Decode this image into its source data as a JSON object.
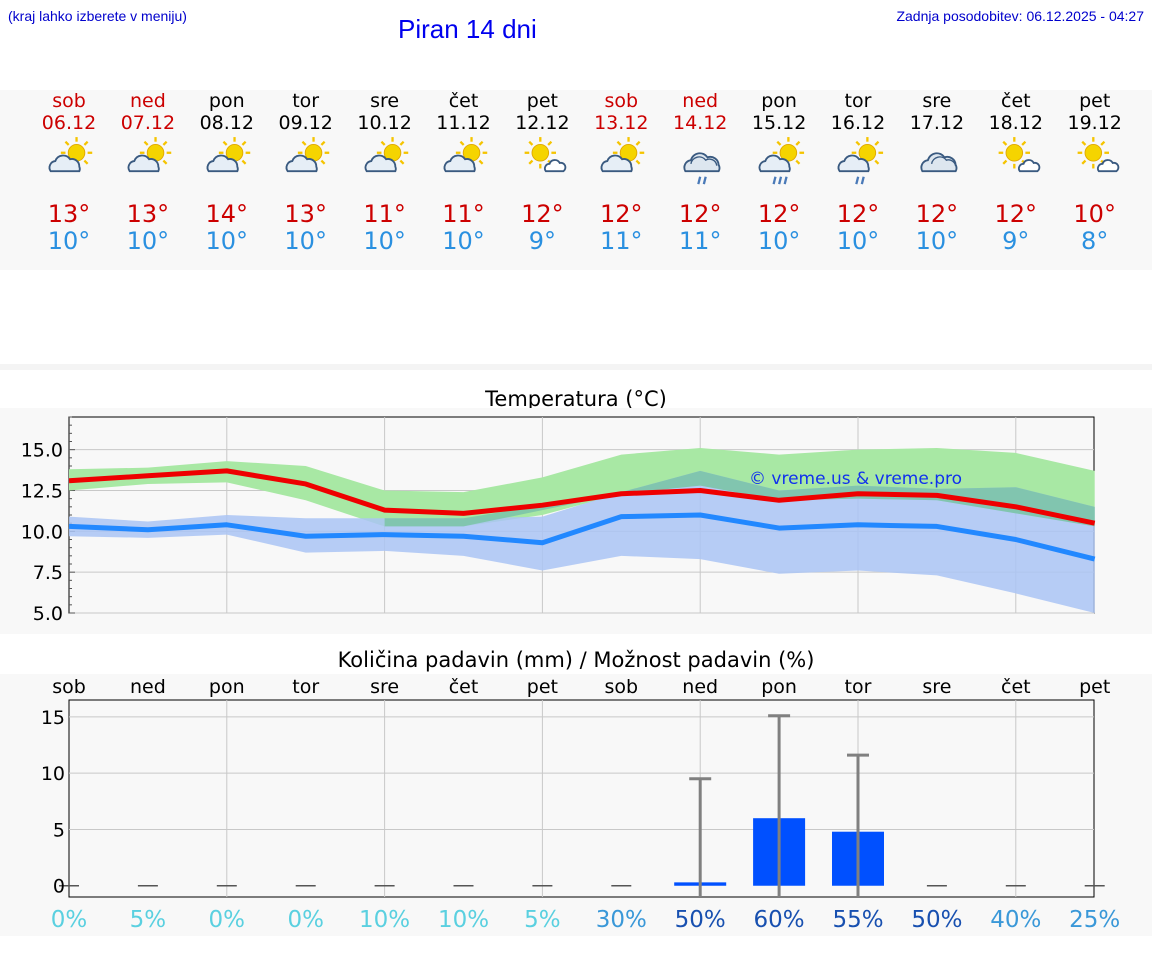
{
  "header": {
    "hint": "(kraj lahko izberete v meniju)",
    "title": "Piran 14 dni",
    "updated": "Zadnja posodobitev: 06.12.2025 - 04:27"
  },
  "days": [
    {
      "name": "sob",
      "date": "06.12",
      "weekend": true,
      "icon": "sun-cloud-icon",
      "tmax": "13°",
      "tmin": "10°"
    },
    {
      "name": "ned",
      "date": "07.12",
      "weekend": true,
      "icon": "sun-cloud-icon",
      "tmax": "13°",
      "tmin": "10°"
    },
    {
      "name": "pon",
      "date": "08.12",
      "weekend": false,
      "icon": "sun-cloud-icon",
      "tmax": "14°",
      "tmin": "10°"
    },
    {
      "name": "tor",
      "date": "09.12",
      "weekend": false,
      "icon": "sun-cloud-icon",
      "tmax": "13°",
      "tmin": "10°"
    },
    {
      "name": "sre",
      "date": "10.12",
      "weekend": false,
      "icon": "sun-cloud-icon",
      "tmax": "11°",
      "tmin": "10°"
    },
    {
      "name": "čet",
      "date": "11.12",
      "weekend": false,
      "icon": "sun-cloud-icon",
      "tmax": "11°",
      "tmin": "10°"
    },
    {
      "name": "pet",
      "date": "12.12",
      "weekend": false,
      "icon": "sun-small-cloud-icon",
      "tmax": "12°",
      "tmin": "9°"
    },
    {
      "name": "sob",
      "date": "13.12",
      "weekend": true,
      "icon": "sun-cloud-icon",
      "tmax": "12°",
      "tmin": "11°"
    },
    {
      "name": "ned",
      "date": "14.12",
      "weekend": true,
      "icon": "cloud-rain-icon",
      "tmax": "12°",
      "tmin": "11°"
    },
    {
      "name": "pon",
      "date": "15.12",
      "weekend": false,
      "icon": "sun-cloud-rain-icon",
      "tmax": "12°",
      "tmin": "10°"
    },
    {
      "name": "tor",
      "date": "16.12",
      "weekend": false,
      "icon": "sun-cloud-drizzle-icon",
      "tmax": "12°",
      "tmin": "10°"
    },
    {
      "name": "sre",
      "date": "17.12",
      "weekend": false,
      "icon": "cloud-icon",
      "tmax": "12°",
      "tmin": "10°"
    },
    {
      "name": "čet",
      "date": "18.12",
      "weekend": false,
      "icon": "sun-small-cloud-icon",
      "tmax": "12°",
      "tmin": "9°"
    },
    {
      "name": "pet",
      "date": "19.12",
      "weekend": false,
      "icon": "sun-small-cloud-icon",
      "tmax": "10°",
      "tmin": "8°"
    }
  ],
  "colors": {
    "max_line": "#ee0000",
    "min_line": "#2288ff",
    "max_band": "#a8e8a4",
    "min_band": "#aac4f4",
    "overlap": "#7cc4a8",
    "bar": "#0050ff",
    "weekend": "#cc0000"
  },
  "chart_data": [
    {
      "type": "line",
      "title": "Temperatura (°C)",
      "watermark": "© vreme.us & vreme.pro",
      "ylim": [
        5,
        17
      ],
      "yticks": [
        "15.0",
        "12.5",
        "10.0",
        "7.5",
        "5.0"
      ],
      "ytick_values": [
        15,
        12.5,
        10,
        7.5,
        5
      ],
      "series": [
        {
          "name": "max",
          "values": [
            13.1,
            13.4,
            13.7,
            12.9,
            11.3,
            11.1,
            11.6,
            12.3,
            12.5,
            11.9,
            12.3,
            12.2,
            11.5,
            10.5
          ]
        },
        {
          "name": "min",
          "values": [
            10.3,
            10.1,
            10.4,
            9.7,
            9.8,
            9.7,
            9.3,
            10.9,
            11.0,
            10.2,
            10.4,
            10.3,
            9.5,
            8.3
          ]
        }
      ],
      "bands": [
        {
          "name": "max_range",
          "low": [
            12.5,
            12.9,
            13.0,
            11.9,
            10.3,
            10.3,
            11.0,
            12.3,
            12.8,
            11.9,
            12.0,
            11.9,
            11.1,
            10.3
          ],
          "high": [
            13.8,
            13.9,
            14.3,
            14.0,
            12.5,
            12.4,
            13.3,
            14.7,
            15.1,
            14.7,
            15.0,
            15.1,
            14.8,
            13.7
          ]
        },
        {
          "name": "min_range",
          "low": [
            9.7,
            9.6,
            9.8,
            8.7,
            8.8,
            8.5,
            7.6,
            8.5,
            8.3,
            7.4,
            7.6,
            7.3,
            6.2,
            5.0
          ],
          "high": [
            10.9,
            10.6,
            11.0,
            10.8,
            10.8,
            10.8,
            10.9,
            12.4,
            13.7,
            12.5,
            12.8,
            12.6,
            12.7,
            11.5
          ]
        }
      ]
    },
    {
      "type": "bar",
      "title": "Količina padavin (mm) / Možnost padavin (%)",
      "ylim": [
        -1,
        16.5
      ],
      "yticks": [
        "15",
        "10",
        "5",
        "0"
      ],
      "ytick_values": [
        15,
        10,
        5,
        0
      ],
      "categories": [
        "sob",
        "ned",
        "pon",
        "tor",
        "sre",
        "čet",
        "pet",
        "sob",
        "ned",
        "pon",
        "tor",
        "sre",
        "čet",
        "pet"
      ],
      "values": [
        0,
        0,
        0,
        0,
        0,
        0,
        0,
        0,
        0.3,
        6.0,
        4.8,
        0,
        0,
        0
      ],
      "error_high": [
        0,
        0,
        0,
        0,
        0,
        0,
        0,
        0,
        9.5,
        15.1,
        11.6,
        0,
        0,
        0
      ],
      "chance": [
        "0%",
        "5%",
        "0%",
        "0%",
        "10%",
        "10%",
        "5%",
        "30%",
        "50%",
        "60%",
        "55%",
        "50%",
        "40%",
        "25%"
      ],
      "chance_values": [
        0,
        5,
        0,
        0,
        10,
        10,
        5,
        30,
        50,
        60,
        55,
        50,
        40,
        25
      ]
    }
  ]
}
